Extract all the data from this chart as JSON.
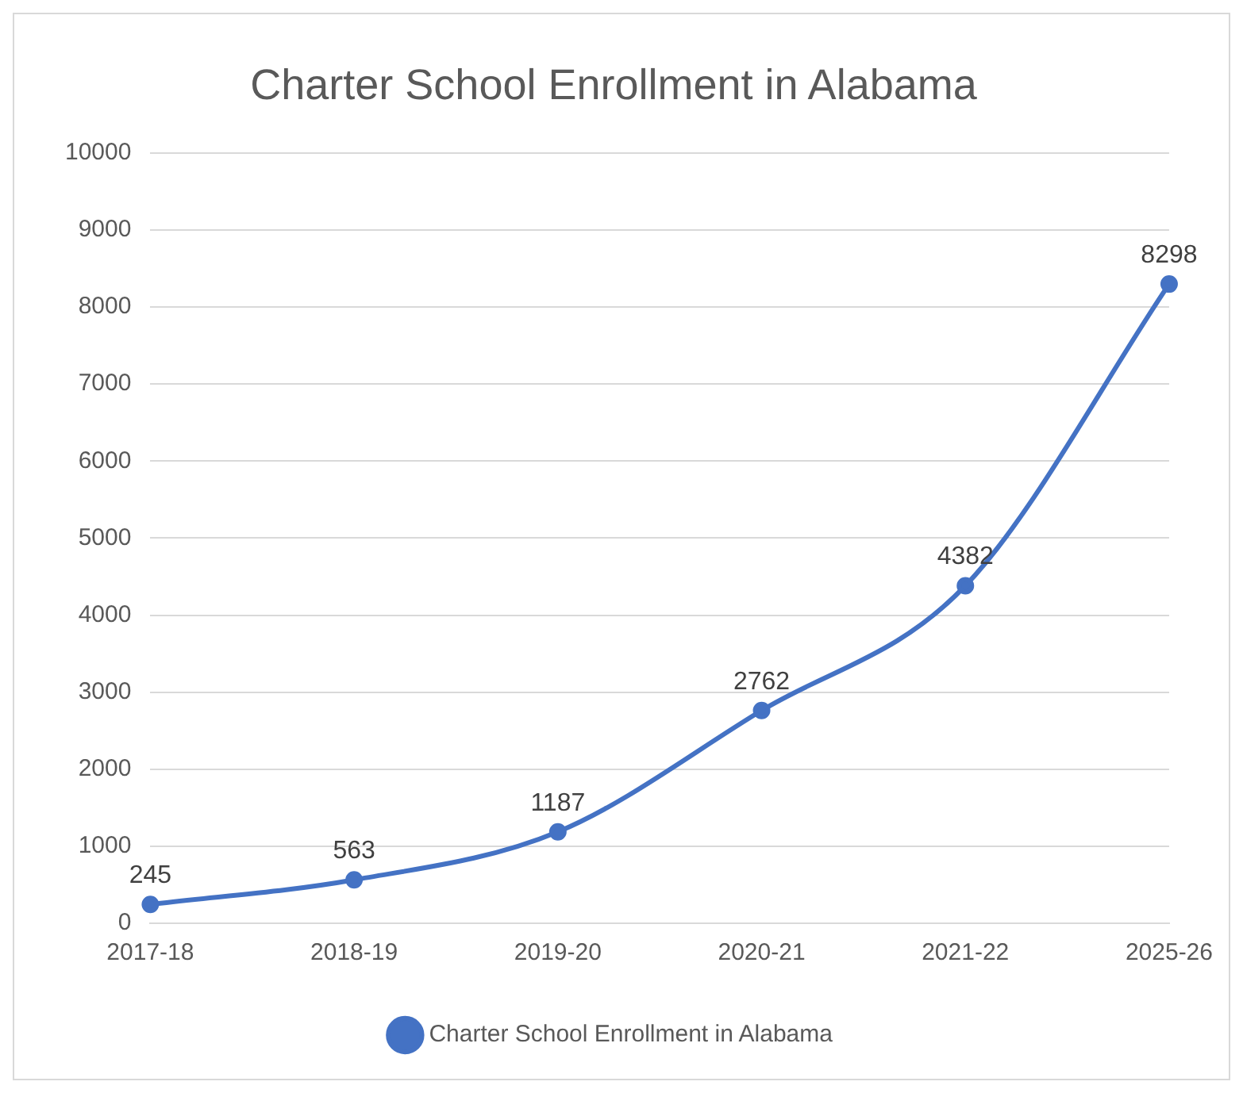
{
  "chart_data": {
    "type": "line",
    "title": "Charter School Enrollment in Alabama",
    "categories": [
      "2017-18",
      "2018-19",
      "2019-20",
      "2020-21",
      "2021-22",
      "2025-26"
    ],
    "series": [
      {
        "name": "Charter School Enrollment in Alabama",
        "color": "#4472c4",
        "values": [
          245,
          563,
          1187,
          2762,
          4382,
          8298
        ]
      }
    ],
    "ylim": [
      0,
      10000
    ],
    "yticks": [
      0,
      1000,
      2000,
      3000,
      4000,
      5000,
      6000,
      7000,
      8000,
      9000,
      10000
    ],
    "grid": "y",
    "legend": "bottom",
    "marker": "circle",
    "line_style": "solid",
    "data_labels": true
  }
}
